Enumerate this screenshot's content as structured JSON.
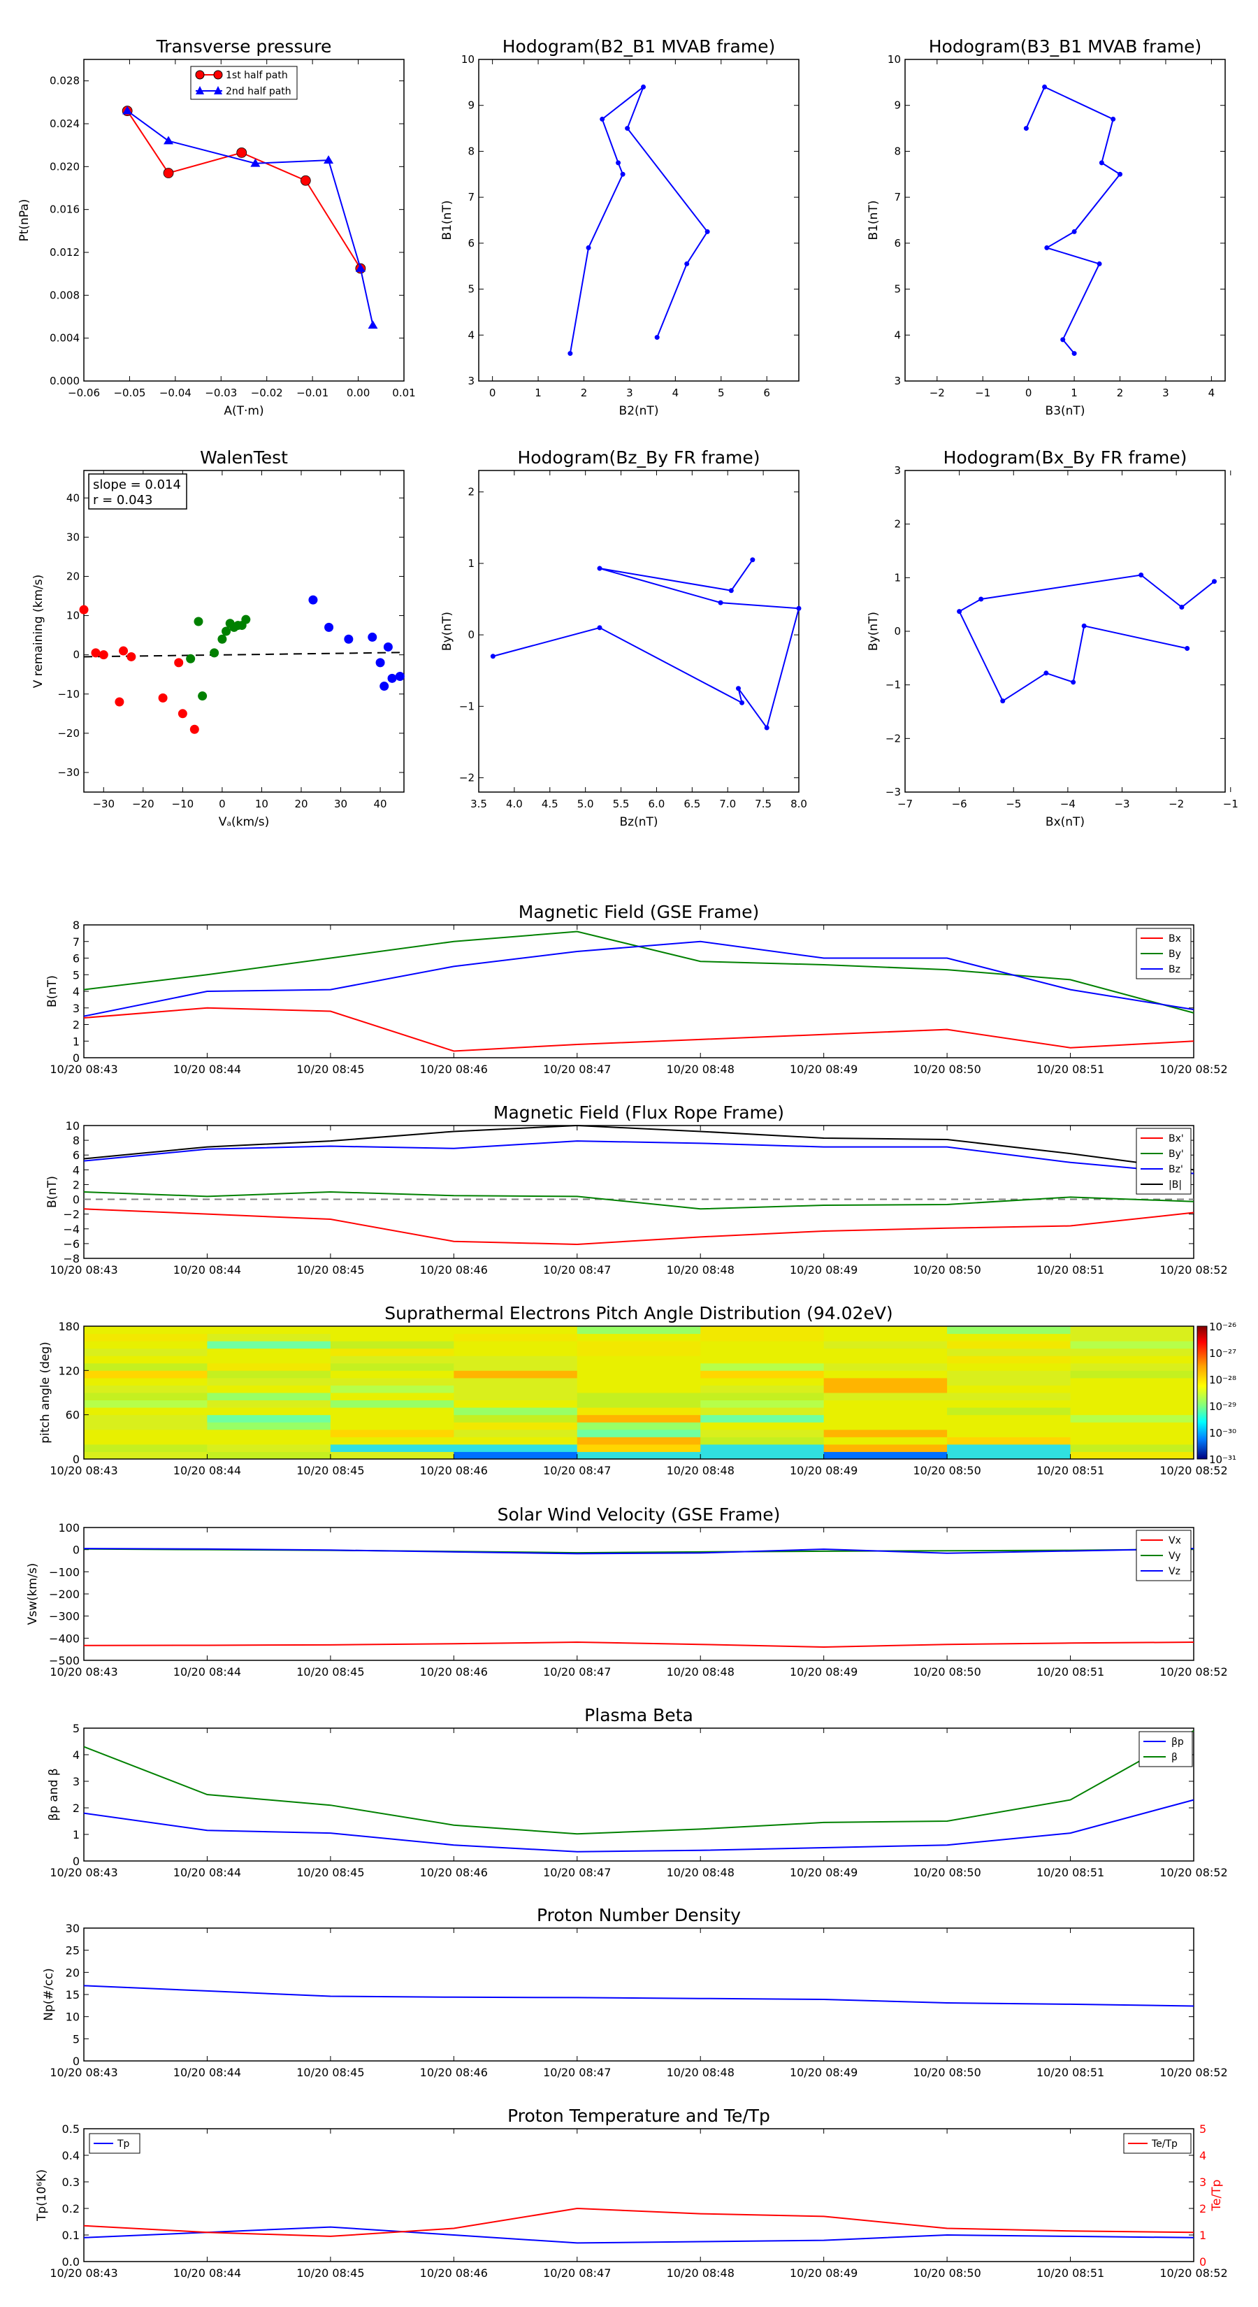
{
  "colors": {
    "red": "#ff0000",
    "green": "#008000",
    "blue": "#0000ff",
    "black": "#000000",
    "gray": "#808080"
  },
  "chart_data": [
    {
      "id": "tp",
      "type": "line",
      "title": "Transverse pressure",
      "xlabel": "A(T·m)",
      "ylabel": "Pt(nPa)",
      "xlim": [
        -0.06,
        0.01
      ],
      "ylim": [
        0,
        0.03
      ],
      "xticks": [
        "−0.06",
        "−0.05",
        "−0.04",
        "−0.03",
        "−0.02",
        "−0.01",
        "0.00",
        "0.01"
      ],
      "yticks": [
        "0.000",
        "0.004",
        "0.008",
        "0.012",
        "0.016",
        "0.020",
        "0.024",
        "0.028"
      ],
      "legend": {
        "placement": "top-center",
        "entries": [
          "1st half path",
          "2nd half path"
        ]
      },
      "series": [
        {
          "name": "1st half path",
          "color": "red",
          "marker": "circle",
          "x": [
            -0.0505,
            -0.0415,
            -0.0255,
            -0.0115,
            0.0005
          ],
          "y": [
            0.0252,
            0.0194,
            0.0213,
            0.0187,
            0.0105
          ]
        },
        {
          "name": "2nd half path",
          "color": "blue",
          "marker": "triangle",
          "x": [
            -0.0505,
            -0.0415,
            -0.0225,
            -0.0065,
            0.0005,
            0.0032
          ],
          "y": [
            0.0252,
            0.0224,
            0.0203,
            0.0206,
            0.0105,
            0.0052
          ]
        }
      ]
    },
    {
      "id": "h21",
      "type": "line",
      "title": "Hodogram(B2_B1 MVAB frame)",
      "xlabel": "B2(nT)",
      "ylabel": "B1(nT)",
      "xlim": [
        -0.3,
        6.7
      ],
      "ylim": [
        3,
        10
      ],
      "xticks": [
        "0",
        "1",
        "2",
        "3",
        "4",
        "5",
        "6"
      ],
      "yticks": [
        "3",
        "4",
        "5",
        "6",
        "7",
        "8",
        "9",
        "10"
      ],
      "series": [
        {
          "color": "blue",
          "x": [
            1.7,
            2.1,
            2.85,
            2.75,
            2.4,
            3.3,
            2.95,
            4.7,
            4.25,
            3.6
          ],
          "y": [
            3.6,
            5.9,
            7.5,
            7.75,
            8.7,
            9.4,
            8.5,
            6.25,
            5.55,
            3.95
          ]
        }
      ]
    },
    {
      "id": "h31",
      "type": "line",
      "title": "Hodogram(B3_B1 MVAB frame)",
      "xlabel": "B3(nT)",
      "ylabel": "B1(nT)",
      "xlim": [
        -2.7,
        4.3
      ],
      "ylim": [
        3,
        10
      ],
      "xticks": [
        "−2",
        "−1",
        "0",
        "1",
        "2",
        "3",
        "4"
      ],
      "yticks": [
        "3",
        "4",
        "5",
        "6",
        "7",
        "8",
        "9",
        "10"
      ],
      "series": [
        {
          "color": "blue",
          "x": [
            1.0,
            0.75,
            1.55,
            0.4,
            1.0,
            2.0,
            1.6,
            1.85,
            0.35,
            -0.05
          ],
          "y": [
            3.6,
            3.9,
            5.55,
            5.9,
            6.25,
            7.5,
            7.75,
            8.7,
            9.4,
            8.5
          ]
        }
      ]
    },
    {
      "id": "walen",
      "type": "scatter",
      "title": "WalenTest",
      "xlabel": "Vₐ(km/s)",
      "ylabel": "V remaining (km/s)",
      "xlim": [
        -35,
        46
      ],
      "ylim": [
        -35,
        47
      ],
      "xticks": [
        "−30",
        "−20",
        "−10",
        "0",
        "10",
        "20",
        "30",
        "40"
      ],
      "yticks": [
        "−30",
        "−20",
        "−10",
        "0",
        "10",
        "20",
        "30",
        "40"
      ],
      "annotation": {
        "line1": "slope = 0.014",
        "line2": "r = 0.043"
      },
      "fit": {
        "x": [
          -35,
          46
        ],
        "y": [
          -0.5,
          0.6
        ]
      },
      "series": [
        {
          "color": "red",
          "x": [
            -35,
            -32,
            -30,
            -26,
            -25,
            -23,
            -15,
            -11,
            -10,
            -7
          ],
          "y": [
            11.5,
            0.5,
            0,
            -12,
            1,
            -0.5,
            -11,
            -2,
            -15,
            -19
          ]
        },
        {
          "color": "green",
          "x": [
            -8,
            -6,
            -5,
            -2,
            0,
            1,
            2,
            3,
            4,
            5,
            6
          ],
          "y": [
            -1,
            8.5,
            -10.5,
            0.5,
            4,
            6,
            8,
            7,
            7.5,
            7.5,
            9
          ]
        },
        {
          "color": "blue",
          "x": [
            23,
            27,
            32,
            38,
            40,
            41,
            42,
            43,
            45
          ],
          "y": [
            14,
            7,
            4,
            4.5,
            -2,
            -8,
            2,
            -6,
            -5.5
          ]
        }
      ]
    },
    {
      "id": "hbzby",
      "type": "line",
      "title": "Hodogram(Bz_By FR frame)",
      "xlabel": "Bz(nT)",
      "ylabel": "By(nT)",
      "xlim": [
        3.5,
        8.0
      ],
      "ylim": [
        -2.2,
        2.3
      ],
      "xticks": [
        "3.5",
        "4.0",
        "4.5",
        "5.0",
        "5.5",
        "6.0",
        "6.5",
        "7.0",
        "7.5",
        "8.0"
      ],
      "yticks": [
        "−2",
        "−1",
        "0",
        "1",
        "2"
      ],
      "series": [
        {
          "color": "blue",
          "x": [
            3.7,
            5.2,
            7.2,
            7.15,
            7.55,
            8.0,
            6.9,
            5.2,
            7.05,
            7.35
          ],
          "y": [
            -0.3,
            0.1,
            -0.95,
            -0.75,
            -1.3,
            0.37,
            0.45,
            0.93,
            0.62,
            1.05
          ]
        }
      ]
    },
    {
      "id": "hbxby",
      "type": "line",
      "title": "Hodogram(Bx_By FR frame)",
      "xlabel": "Bx(nT)",
      "ylabel": "By(nT)",
      "xlim": [
        -7,
        -1.1
      ],
      "ylim": [
        -3,
        3
      ],
      "xticks": [
        "−7",
        "−6",
        "−5",
        "−4",
        "−3",
        "−2",
        "−1"
      ],
      "yticks": [
        "−3",
        "−2",
        "−1",
        "0",
        "1",
        "2",
        "3"
      ],
      "series": [
        {
          "color": "blue",
          "x": [
            -1.8,
            -3.7,
            -3.9,
            -4.4,
            -5.2,
            -6.0,
            -5.6,
            -2.65,
            -1.9,
            -1.3
          ],
          "y": [
            -0.32,
            0.1,
            -0.95,
            -0.78,
            -1.3,
            0.37,
            0.6,
            1.05,
            0.45,
            0.93
          ]
        }
      ]
    },
    {
      "id": "mfgse",
      "type": "line",
      "title": "Magnetic Field (GSE Frame)",
      "ylabel": "B(nT)",
      "ylim": [
        0,
        8
      ],
      "yticks": [
        "0",
        "1",
        "2",
        "3",
        "4",
        "5",
        "6",
        "7",
        "8"
      ],
      "legend": {
        "placement": "upper-right"
      },
      "categories": [
        "10/20 08:43",
        "10/20 08:44",
        "10/20 08:45",
        "10/20 08:46",
        "10/20 08:47",
        "10/20 08:48",
        "10/20 08:49",
        "10/20 08:50",
        "10/20 08:51",
        "10/20 08:52"
      ],
      "series": [
        {
          "name": "Bx",
          "color": "red",
          "values": [
            2.4,
            3.0,
            2.8,
            0.4,
            0.8,
            1.1,
            1.4,
            1.7,
            0.6,
            1.0
          ]
        },
        {
          "name": "By",
          "color": "green",
          "values": [
            4.1,
            5.0,
            6.0,
            7.0,
            7.6,
            5.8,
            5.6,
            5.3,
            4.7,
            2.7
          ]
        },
        {
          "name": "Bz",
          "color": "blue",
          "values": [
            2.5,
            4.0,
            4.1,
            5.5,
            6.4,
            7.0,
            6.0,
            6.0,
            4.1,
            2.9
          ]
        }
      ]
    },
    {
      "id": "mffr",
      "type": "line",
      "title": "Magnetic Field (Flux Rope Frame)",
      "ylabel": "B(nT)",
      "ylim": [
        -8,
        10
      ],
      "yticks": [
        "−8",
        "−6",
        "−4",
        "−2",
        "0",
        "2",
        "4",
        "6",
        "8",
        "10"
      ],
      "legend": {
        "placement": "right"
      },
      "categories": [
        "10/20 08:43",
        "10/20 08:44",
        "10/20 08:45",
        "10/20 08:46",
        "10/20 08:47",
        "10/20 08:48",
        "10/20 08:49",
        "10/20 08:50",
        "10/20 08:51",
        "10/20 08:52"
      ],
      "zero_line": true,
      "series": [
        {
          "name": "Bx'",
          "color": "red",
          "values": [
            -1.3,
            -2.0,
            -2.7,
            -5.7,
            -6.1,
            -5.1,
            -4.3,
            -3.9,
            -3.6,
            -1.8
          ]
        },
        {
          "name": "By'",
          "color": "green",
          "values": [
            1.0,
            0.4,
            1.0,
            0.5,
            0.4,
            -1.3,
            -0.8,
            -0.7,
            0.3,
            -0.3
          ]
        },
        {
          "name": "Bz'",
          "color": "blue",
          "values": [
            5.2,
            6.8,
            7.2,
            6.9,
            7.9,
            7.6,
            7.1,
            7.1,
            5.0,
            3.5
          ]
        },
        {
          "name": "|B|",
          "color": "black",
          "values": [
            5.5,
            7.1,
            7.9,
            9.2,
            10.0,
            9.2,
            8.3,
            8.1,
            6.2,
            4.0
          ]
        }
      ]
    },
    {
      "id": "pad",
      "type": "heatmap",
      "title": "Suprathermal Electrons Pitch Angle Distribution (94.02eV)",
      "ylabel": "pitch angle (deg)",
      "ylim": [
        0,
        180
      ],
      "yticks": [
        "0",
        "60",
        "120",
        "180"
      ],
      "categories": [
        "10/20 08:43",
        "10/20 08:44",
        "10/20 08:45",
        "10/20 08:46",
        "10/20 08:47",
        "10/20 08:48",
        "10/20 08:49",
        "10/20 08:50",
        "10/20 08:51",
        "10/20 08:52"
      ],
      "colorbar": {
        "labels": [
          "10⁻²⁶",
          "10⁻²⁷",
          "10⁻²⁸",
          "10⁻²⁹",
          "10⁻³⁰",
          "10⁻³¹"
        ]
      }
    },
    {
      "id": "vsw",
      "type": "line",
      "title": "Solar Wind Velocity (GSE Frame)",
      "ylabel": "Vsw(km/s)",
      "ylim": [
        -500,
        100
      ],
      "yticks": [
        "−500",
        "−400",
        "−300",
        "−200",
        "−100",
        "0",
        "100"
      ],
      "legend": {
        "placement": "upper-right"
      },
      "categories": [
        "10/20 08:43",
        "10/20 08:44",
        "10/20 08:45",
        "10/20 08:46",
        "10/20 08:47",
        "10/20 08:48",
        "10/20 08:49",
        "10/20 08:50",
        "10/20 08:51",
        "10/20 08:52"
      ],
      "series": [
        {
          "name": "Vx",
          "color": "red",
          "values": [
            -433,
            -432,
            -430,
            -425,
            -418,
            -428,
            -440,
            -428,
            -422,
            -418
          ]
        },
        {
          "name": "Vy",
          "color": "green",
          "values": [
            3,
            0,
            -3,
            -8,
            -14,
            -10,
            -7,
            -5,
            -3,
            2
          ]
        },
        {
          "name": "Vz",
          "color": "blue",
          "values": [
            5,
            3,
            -2,
            -10,
            -18,
            -15,
            2,
            -16,
            -6,
            5
          ]
        }
      ]
    },
    {
      "id": "beta",
      "type": "line",
      "title": "Plasma Beta",
      "ylabel": "βp and β",
      "ylim": [
        0,
        5
      ],
      "yticks": [
        "0",
        "1",
        "2",
        "3",
        "4",
        "5"
      ],
      "legend": {
        "placement": "upper-right"
      },
      "categories": [
        "10/20 08:43",
        "10/20 08:44",
        "10/20 08:45",
        "10/20 08:46",
        "10/20 08:47",
        "10/20 08:48",
        "10/20 08:49",
        "10/20 08:50",
        "10/20 08:51",
        "10/20 08:52"
      ],
      "series": [
        {
          "name": "βp",
          "color": "blue",
          "values": [
            1.8,
            1.15,
            1.05,
            0.6,
            0.35,
            0.4,
            0.5,
            0.6,
            1.05,
            2.3
          ]
        },
        {
          "name": "β",
          "color": "green",
          "values": [
            4.3,
            2.5,
            2.1,
            1.35,
            1.02,
            1.2,
            1.45,
            1.5,
            2.3,
            4.9
          ]
        }
      ]
    },
    {
      "id": "np",
      "type": "line",
      "title": "Proton Number Density",
      "ylabel": "Np(#/cc)",
      "ylim": [
        0,
        30
      ],
      "yticks": [
        "0",
        "5",
        "10",
        "15",
        "20",
        "25",
        "30"
      ],
      "categories": [
        "10/20 08:43",
        "10/20 08:44",
        "10/20 08:45",
        "10/20 08:46",
        "10/20 08:47",
        "10/20 08:48",
        "10/20 08:49",
        "10/20 08:50",
        "10/20 08:51",
        "10/20 08:52"
      ],
      "series": [
        {
          "color": "blue",
          "values": [
            17,
            15.8,
            14.6,
            14.4,
            14.3,
            14.1,
            13.9,
            13.1,
            12.8,
            12.4
          ]
        }
      ]
    },
    {
      "id": "temp",
      "type": "line",
      "title": "Proton Temperature and Te/Tp",
      "ylabel": "Tp(10⁶K)",
      "ylabel_right": "Te/Tp",
      "ylim": [
        0,
        0.5
      ],
      "ylim_right": [
        0,
        5
      ],
      "yticks": [
        "0.0",
        "0.1",
        "0.2",
        "0.3",
        "0.4",
        "0.5"
      ],
      "yticks_right": [
        "0",
        "1",
        "2",
        "3",
        "4",
        "5"
      ],
      "categories": [
        "10/20 08:43",
        "10/20 08:44",
        "10/20 08:45",
        "10/20 08:46",
        "10/20 08:47",
        "10/20 08:48",
        "10/20 08:49",
        "10/20 08:50",
        "10/20 08:51",
        "10/20 08:52"
      ],
      "series": [
        {
          "name": "Tp",
          "color": "blue",
          "axis": "left",
          "values": [
            0.09,
            0.11,
            0.13,
            0.1,
            0.07,
            0.075,
            0.08,
            0.1,
            0.095,
            0.09
          ]
        },
        {
          "name": "Te/Tp",
          "color": "red",
          "axis": "right",
          "values": [
            1.35,
            1.1,
            0.95,
            1.25,
            2.0,
            1.8,
            1.7,
            1.25,
            1.15,
            1.1
          ]
        }
      ]
    }
  ]
}
